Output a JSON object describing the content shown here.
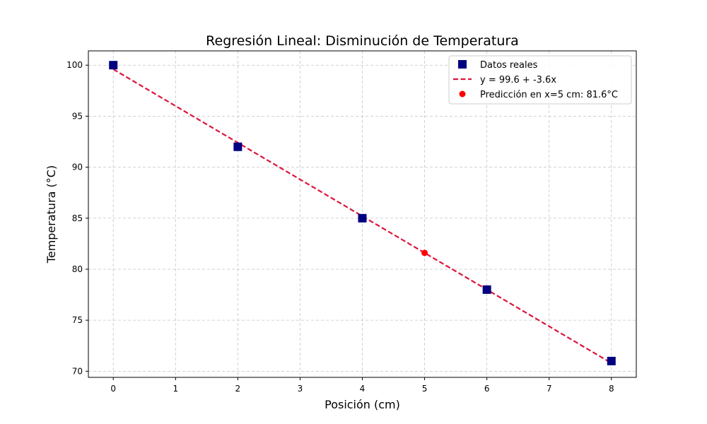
{
  "chart_data": {
    "type": "scatter",
    "title": "Regresión Lineal: Disminución de Temperatura",
    "xlabel": "Posición (cm)",
    "ylabel": "Temperatura (°C)",
    "xlim": [
      -0.4,
      8.4
    ],
    "ylim": [
      69.4,
      101.4
    ],
    "xticks": [
      0,
      1,
      2,
      3,
      4,
      5,
      6,
      7,
      8
    ],
    "yticks": [
      70,
      75,
      80,
      85,
      90,
      95,
      100
    ],
    "grid": true,
    "legend_position": "top-right",
    "series": [
      {
        "name": "Datos reales",
        "kind": "scatter",
        "marker": "square",
        "color": "#000080",
        "x": [
          0,
          2,
          4,
          6,
          8
        ],
        "y": [
          100,
          92,
          85,
          78,
          71
        ]
      },
      {
        "name": "y = 99.6 + -3.6x",
        "kind": "line",
        "style": "dashed",
        "color": "#dc143c",
        "intercept": 99.6,
        "slope": -3.6,
        "x": [
          0,
          8
        ],
        "y": [
          99.6,
          70.8
        ]
      },
      {
        "name": "Predicción en x=5 cm: 81.6°C",
        "kind": "scatter",
        "marker": "circle",
        "color": "#ff0000",
        "x": [
          5
        ],
        "y": [
          81.6
        ]
      }
    ]
  }
}
